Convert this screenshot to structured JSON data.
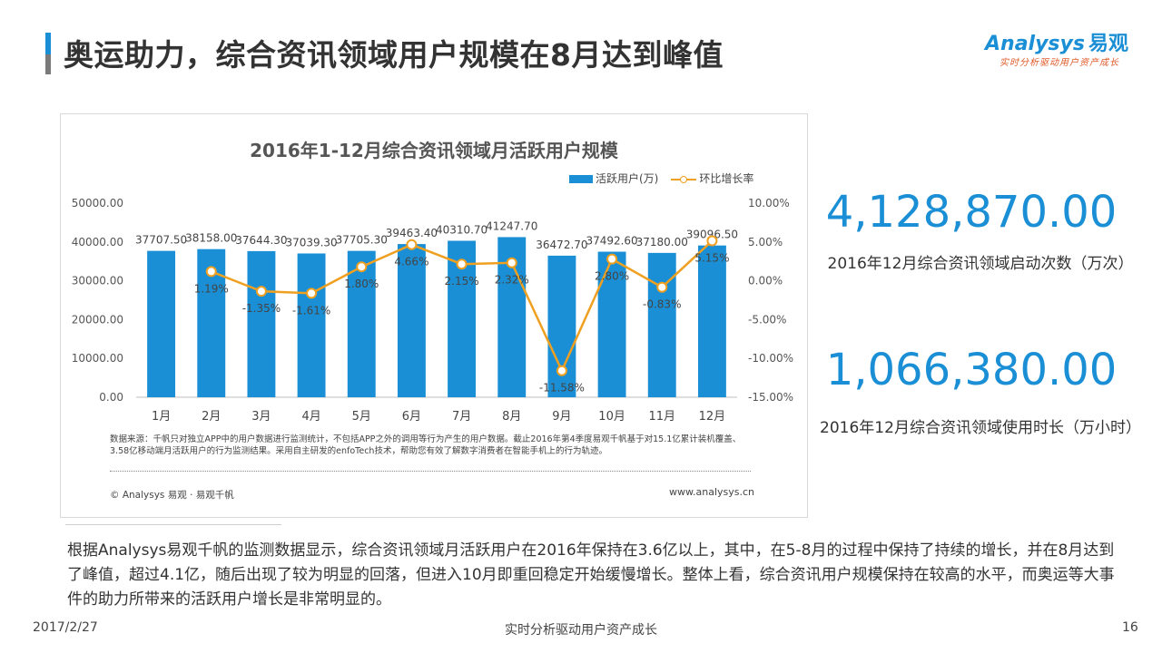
{
  "page": {
    "title": "奥运助力，综合资讯领域用户规模在8月达到峰值",
    "logo_text": "Analysys",
    "logo_cn": "易观",
    "logo_tagline": "实时分析驱动用户资产成长"
  },
  "chart_data": {
    "type": "bar+line",
    "title": "2016年1-12月综合资讯领域月活跃用户规模",
    "categories": [
      "1月",
      "2月",
      "3月",
      "4月",
      "5月",
      "6月",
      "7月",
      "8月",
      "9月",
      "10月",
      "11月",
      "12月"
    ],
    "series": [
      {
        "name": "活跃用户(万)",
        "type": "bar",
        "axis": "left",
        "values": [
          37707.5,
          38158.0,
          37644.3,
          37039.3,
          37705.3,
          39463.4,
          40310.7,
          41247.7,
          36472.7,
          37492.6,
          37180.0,
          39096.5
        ],
        "labels": [
          "37707.50",
          "38158.00",
          "37644.30",
          "37039.30",
          "37705.30",
          "39463.40",
          "40310.70",
          "41247.70",
          "36472.70",
          "37492.60",
          "37180.00",
          "39096.50"
        ]
      },
      {
        "name": "环比增长率",
        "type": "line",
        "axis": "right",
        "values": [
          null,
          1.19,
          -1.35,
          -1.61,
          1.8,
          4.66,
          2.15,
          2.32,
          -11.58,
          2.8,
          -0.83,
          5.15
        ],
        "labels": [
          "",
          "1.19%",
          "-1.35%",
          "-1.61%",
          "1.80%",
          "4.66%",
          "2.15%",
          "2.32%",
          "-11.58%",
          "2.80%",
          "-0.83%",
          "5.15%"
        ]
      }
    ],
    "y_left": {
      "min": 0,
      "max": 50000,
      "ticks": [
        "0.00",
        "10000.00",
        "20000.00",
        "30000.00",
        "40000.00",
        "50000.00"
      ]
    },
    "y_right": {
      "min": -15,
      "max": 10,
      "ticks": [
        "-15.00%",
        "-10.00%",
        "-5.00%",
        "0.00%",
        "5.00%",
        "10.00%"
      ]
    },
    "legend_position": "top-right",
    "colors": {
      "bar": "#1a8fd5",
      "line": "#f0a020"
    },
    "note": "数据来源：千帆只对独立APP中的用户数据进行监测统计，不包括APP之外的调用等行为产生的用户数据。截止2016年第4季度易观千帆基于对15.1亿累计装机覆盖、3.58亿移动端月活跃用户的行为监测结果。采用自主研发的enfoTech技术，帮助您有效了解数字消费者在智能手机上的行为轨迹。",
    "copyright": "© Analysys 易观 · 易观千帆",
    "site": "www.analysys.cn"
  },
  "stats": [
    {
      "value": "4,128,870.00",
      "label": "2016年12月综合资讯领域启动次数（万次）"
    },
    {
      "value": "1,066,380.00",
      "label": "2016年12月综合资讯领域使用时长（万小时）"
    }
  ],
  "body_text": "根据Analysys易观千帆的监测数据显示，综合资讯领域月活跃用户在2016年保持在3.6亿以上，其中，在5-8月的过程中保持了持续的增长，并在8月达到了峰值，超过4.1亿，随后出现了较为明显的回落，但进入10月即重回稳定开始缓慢增长。整体上看，综合资讯用户规模保持在较高的水平，而奥运等大事件的助力所带来的活跃用户增长是非常明显的。",
  "footer": {
    "date": "2017/2/27",
    "tagline": "实时分析驱动用户资产成长",
    "page_number": "16"
  }
}
